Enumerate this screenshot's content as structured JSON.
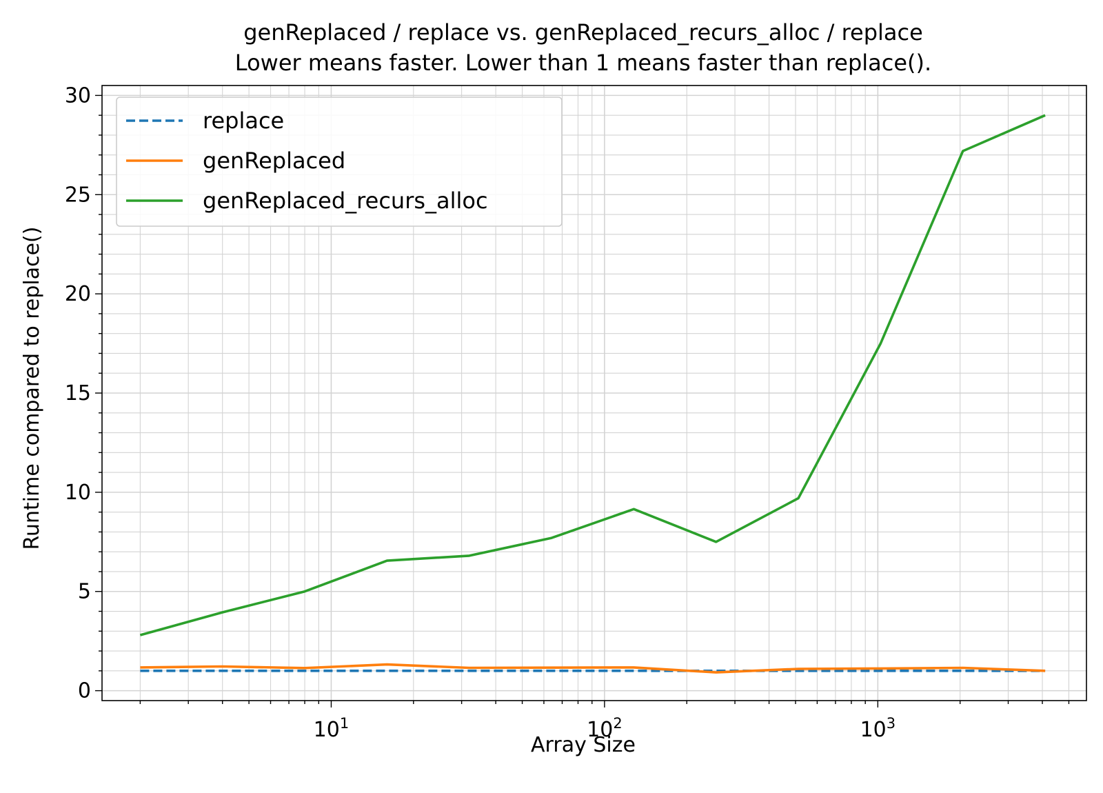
{
  "chart_data": {
    "type": "line",
    "title": "genReplaced / replace vs. genReplaced_recurs_alloc / replace",
    "subtitle": "Lower means faster. Lower than 1 means faster than replace().",
    "xlabel": "Array Size",
    "ylabel": "Runtime compared to replace()",
    "x_scale": "log",
    "xlim": [
      1.45,
      5800
    ],
    "ylim": [
      -0.5,
      30.5
    ],
    "x_ticks": [
      {
        "value": 10,
        "base": "10",
        "exp": "1"
      },
      {
        "value": 100,
        "base": "10",
        "exp": "2"
      },
      {
        "value": 1000,
        "base": "10",
        "exp": "3"
      }
    ],
    "y_ticks": [
      0,
      5,
      10,
      15,
      20,
      25,
      30
    ],
    "y_tick_labels": [
      "0",
      "5",
      "10",
      "15",
      "20",
      "25",
      "30"
    ],
    "grid": "major and minor",
    "legend_position": "upper-left",
    "x": [
      2,
      4,
      8,
      16,
      32,
      64,
      128,
      256,
      512,
      1024,
      2048,
      4096
    ],
    "series": [
      {
        "name": "replace",
        "color": "#1f77b4",
        "style": "dashed",
        "values": [
          1,
          1,
          1,
          1,
          1,
          1,
          1,
          1,
          1,
          1,
          1,
          1
        ]
      },
      {
        "name": "genReplaced",
        "color": "#ff7f0e",
        "style": "solid",
        "values": [
          1.17,
          1.22,
          1.14,
          1.32,
          1.15,
          1.16,
          1.17,
          0.92,
          1.1,
          1.12,
          1.15,
          1.0
        ]
      },
      {
        "name": "genReplaced_recurs_alloc",
        "color": "#2ca02c",
        "style": "solid",
        "values": [
          2.8,
          3.95,
          5.0,
          6.55,
          6.8,
          7.7,
          9.15,
          7.5,
          9.7,
          17.5,
          27.2,
          29.0
        ]
      }
    ]
  }
}
